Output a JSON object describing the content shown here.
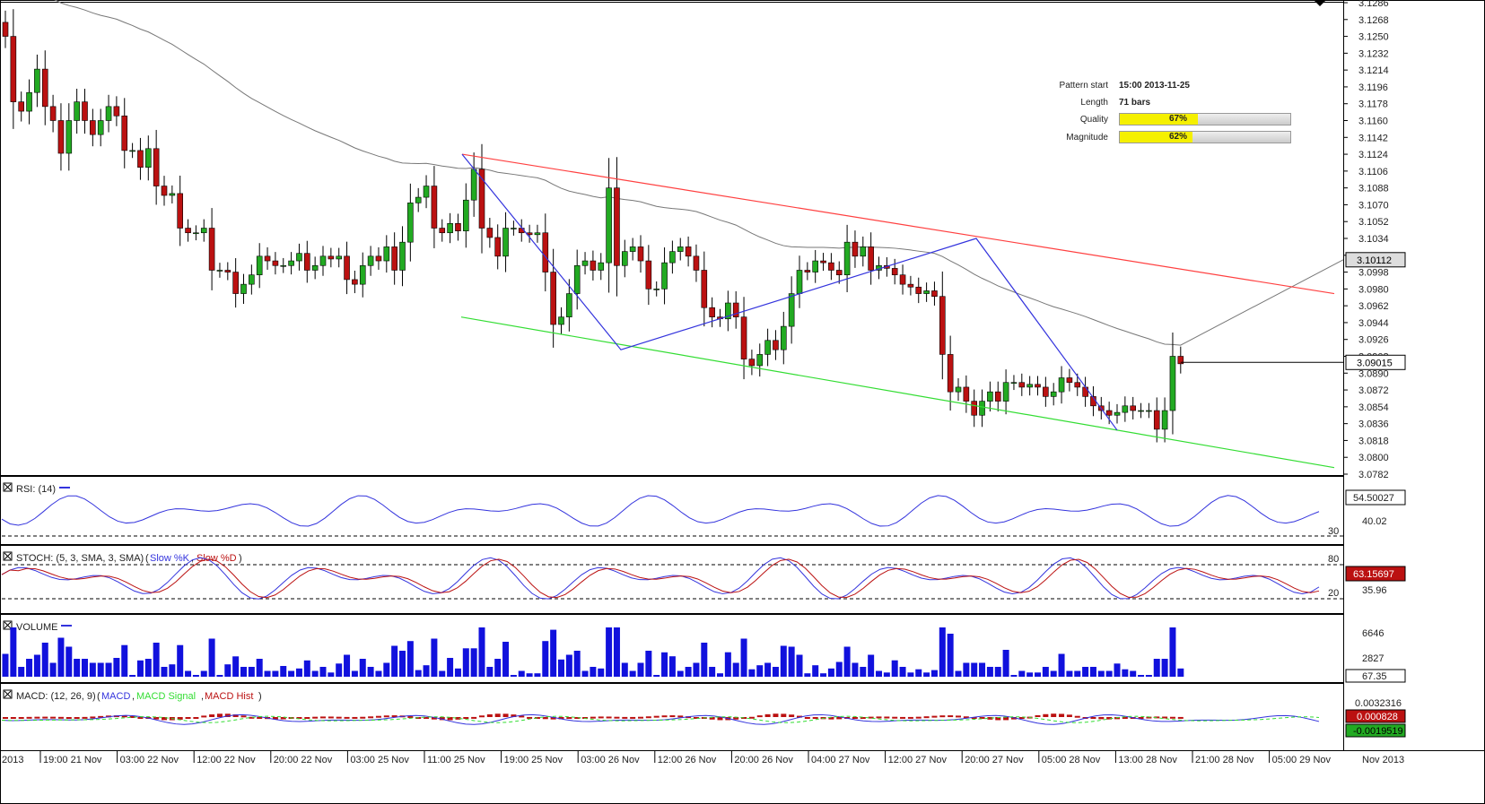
{
  "chart_data": {
    "type": "candlestick",
    "instrument_note": "",
    "x_tick_labels": [
      "2013",
      "19:00 21 Nov",
      "03:00 22 Nov",
      "12:00 22 Nov",
      "20:00 22 Nov",
      "03:00 25 Nov",
      "11:00 25 Nov",
      "19:00 25 Nov",
      "03:00 26 Nov",
      "12:00 26 Nov",
      "20:00 26 Nov",
      "04:00 27 Nov",
      "12:00 27 Nov",
      "20:00 27 Nov",
      "05:00 28 Nov",
      "13:00 28 Nov",
      "21:00 28 Nov",
      "05:00 29 Nov",
      "Nov 2013"
    ],
    "price_axis": {
      "ylim": [
        3.0782,
        3.1286
      ],
      "tick_labels": [
        "3.1286",
        "3.1268",
        "3.1250",
        "3.1232",
        "3.1214",
        "3.1196",
        "3.1178",
        "3.1160",
        "3.1142",
        "3.1124",
        "3.1106",
        "3.1088",
        "3.1070",
        "3.1052",
        "3.1034",
        "3.1016",
        "3.0998",
        "3.0980",
        "3.0962",
        "3.0944",
        "3.0926",
        "3.0908",
        "3.0890",
        "3.0872",
        "3.0854",
        "3.0836",
        "3.0818",
        "3.0800",
        "3.0782"
      ],
      "ma_label": "3.10112",
      "last_label": "3.09015"
    },
    "close": [
      3.125,
      3.118,
      3.117,
      3.119,
      3.1215,
      3.1175,
      3.116,
      3.1125,
      3.116,
      3.118,
      3.116,
      3.1145,
      3.116,
      3.1175,
      3.1165,
      3.1128,
      3.1128,
      3.111,
      3.113,
      3.109,
      3.108,
      3.1082,
      3.1045,
      3.104,
      3.104,
      3.1045,
      3.1,
      3.1,
      3.0998,
      3.0975,
      3.0985,
      3.0995,
      3.1015,
      3.101,
      3.1005,
      3.1005,
      3.101,
      3.1018,
      3.1,
      3.1005,
      3.1015,
      3.1012,
      3.1015,
      3.099,
      3.0985,
      3.1005,
      3.1015,
      3.101,
      3.1025,
      3.1,
      3.103,
      3.1072,
      3.1078,
      3.109,
      3.1045,
      3.104,
      3.105,
      3.1042,
      3.1075,
      3.1108,
      3.1045,
      3.1035,
      3.1015,
      3.1045,
      3.1045,
      3.104,
      3.1038,
      3.104,
      3.0998,
      3.0942,
      3.095,
      3.0975,
      3.1005,
      3.101,
      3.1,
      3.1008,
      3.1088,
      3.1005,
      3.102,
      3.1025,
      3.101,
      3.098,
      3.098,
      3.1008,
      3.102,
      3.1025,
      3.1015,
      3.1,
      3.096,
      3.095,
      3.0948,
      3.0965,
      3.095,
      3.0905,
      3.0898,
      3.091,
      3.0925,
      3.0915,
      3.094,
      3.0975,
      3.1,
      3.0998,
      3.101,
      3.1008,
      3.1,
      3.0995,
      3.103,
      3.1015,
      3.1025,
      3.1,
      3.1005,
      3.1002,
      3.0995,
      3.0985,
      3.0982,
      3.0975,
      3.0978,
      3.0972,
      3.091,
      3.087,
      3.0875,
      3.086,
      3.0845,
      3.086,
      3.087,
      3.086,
      3.088,
      3.088,
      3.0875,
      3.0878,
      3.0875,
      3.0865,
      3.087,
      3.0885,
      3.088,
      3.0875,
      3.0865,
      3.0855,
      3.085,
      3.0845,
      3.0848,
      3.0855,
      3.085,
      3.085,
      3.085,
      3.083,
      3.085,
      3.0908,
      3.09
    ],
    "series_labels": {
      "rsi": "RSI: (14)",
      "stoch": "STOCH: (5, 3, SMA, 3, SMA)",
      "volume": "VOLUME",
      "macd": "MACD: (12, 26, 9)"
    },
    "rsi_axis": {
      "ticks": [
        "40.02",
        "30"
      ],
      "last": "54.50027"
    },
    "stoch_axis": {
      "ticks": [
        "80",
        "35.96",
        "20"
      ],
      "last": "63.15697"
    },
    "volume_axis": {
      "ticks": [
        "6646",
        "2827"
      ],
      "last": "67.35"
    },
    "macd_axis": {
      "ticks": [
        "0.0032316"
      ],
      "hist_last": "0.000828",
      "signal_last": "-0.0019519"
    }
  },
  "pattern_panel": {
    "pattern_start_label": "Pattern start",
    "pattern_start_value": "15:00 2013-11-25",
    "length_label": "Length",
    "length_value": "71 bars",
    "quality_label": "Quality",
    "quality_value": "67%",
    "quality_fraction": 0.67,
    "magnitude_label": "Magnitude",
    "magnitude_value": "62%",
    "magnitude_fraction": 0.62
  },
  "legend": {
    "stoch_slow_k": "Slow %K",
    "stoch_slow_d": "Slow %D",
    "macd_macd": "MACD",
    "macd_signal": "MACD Signal",
    "macd_hist": "MACD Hist"
  },
  "colors": {
    "up": "#22aa22",
    "down": "#bb1111",
    "channel_upper": "#ff4040",
    "channel_lower": "#33dd33",
    "zigzag": "#3333dd",
    "ma": "#777777",
    "indicator": "#3333dd",
    "volume": "#1111dd"
  }
}
